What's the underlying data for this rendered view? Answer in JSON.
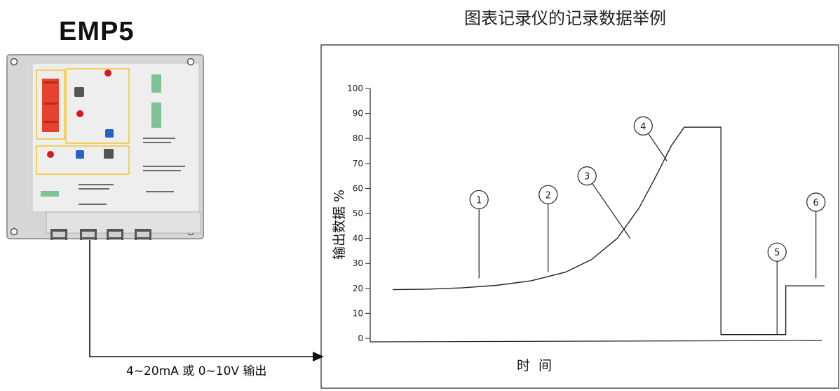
{
  "device": {
    "title": "EMP5"
  },
  "signal": {
    "output_label": "4~20mA 或 0~10V 输出"
  },
  "chart_data": {
    "type": "line",
    "title": "图表记录仪的记录数据举例",
    "xlabel": "时  间",
    "ylabel": "输出数据 %",
    "ylim": [
      0,
      100
    ],
    "yticks": [
      "0",
      "10",
      "20",
      "30",
      "40",
      "50",
      "60",
      "70",
      "80",
      "90",
      "100"
    ],
    "series": [
      {
        "values": [
          {
            "t": 0.0,
            "y": 19.5
          },
          {
            "t": 0.08,
            "y": 19.7
          },
          {
            "t": 0.16,
            "y": 20.2
          },
          {
            "t": 0.24,
            "y": 21.2
          },
          {
            "t": 0.32,
            "y": 23.0
          },
          {
            "t": 0.4,
            "y": 26.5
          },
          {
            "t": 0.46,
            "y": 31.5
          },
          {
            "t": 0.52,
            "y": 40.0
          },
          {
            "t": 0.57,
            "y": 52.0
          },
          {
            "t": 0.61,
            "y": 65.0
          },
          {
            "t": 0.645,
            "y": 77.0
          },
          {
            "t": 0.675,
            "y": 84.5
          },
          {
            "t": 0.76,
            "y": 84.5
          },
          {
            "t": 0.76,
            "y": 1.5
          },
          {
            "t": 0.91,
            "y": 1.5
          },
          {
            "t": 0.91,
            "y": 21.0
          },
          {
            "t": 1.0,
            "y": 21.0
          }
        ]
      }
    ],
    "annotations": [
      {
        "label": "1",
        "cx_t": 0.2,
        "cy": 55.5,
        "line_to_y": 24.0
      },
      {
        "label": "2",
        "cx_t": 0.36,
        "cy": 57.5,
        "line_to_y": 26.5
      },
      {
        "label": "3",
        "cx_t": 0.45,
        "cy": 65.0
      },
      {
        "label": "4",
        "cx_t": 0.58,
        "cy": 85.0
      },
      {
        "label": "5",
        "cx_t": 0.89,
        "cy": 34.5,
        "line_to_y": 1.5
      },
      {
        "label": "6",
        "cx_t": 0.98,
        "cy": 54.5,
        "line_to_y": 24.0
      }
    ]
  },
  "colors": {
    "enclosure": "#d4d4d4",
    "relay_block": "#e8412c",
    "highlight_box": "#f2d23a",
    "led": "#d71920",
    "button": "#2860c8",
    "terminal": "#2e9a4e"
  }
}
